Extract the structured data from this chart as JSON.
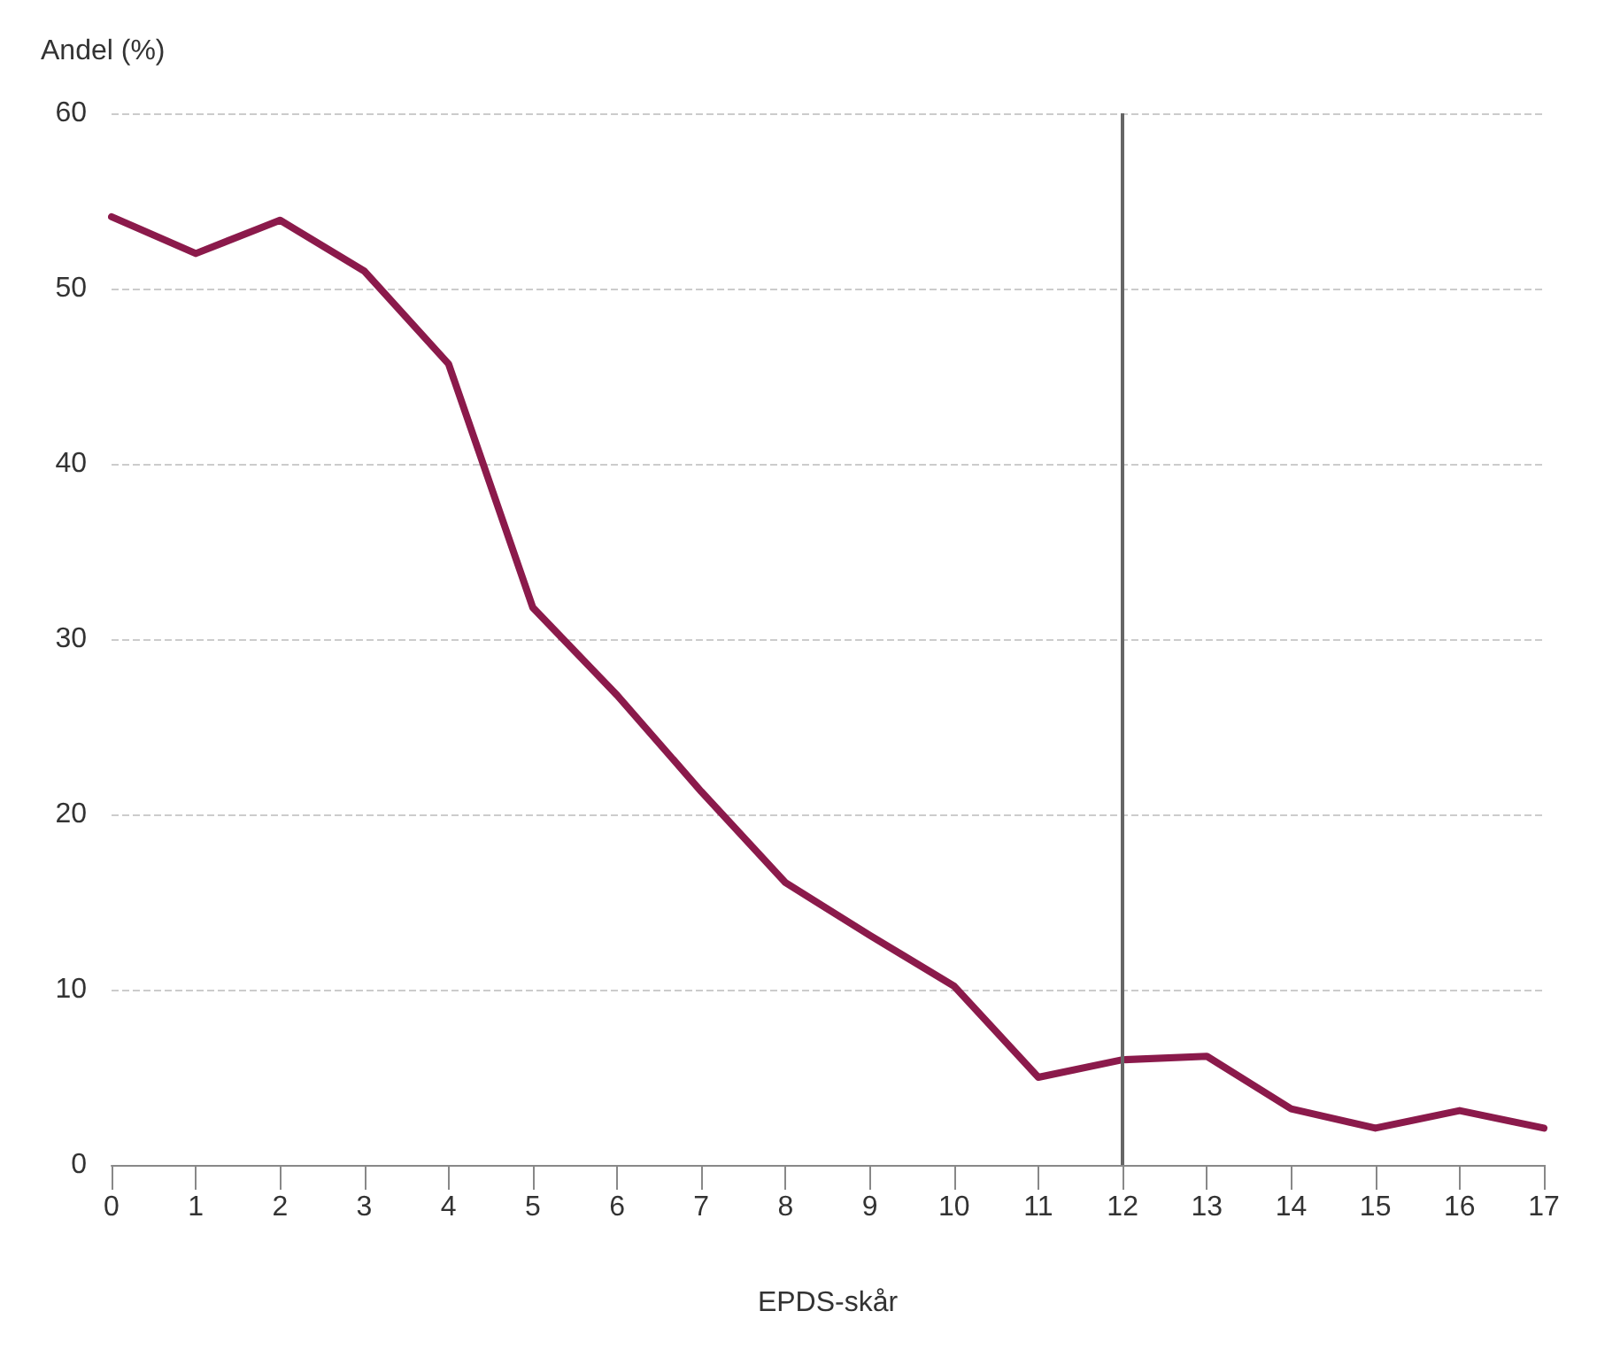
{
  "chart_data": {
    "type": "line",
    "xlabel": "EPDS-skår",
    "ylabel": "Andel (%)",
    "x": [
      0,
      1,
      2,
      3,
      4,
      5,
      6,
      7,
      8,
      9,
      10,
      11,
      12,
      13,
      14,
      15,
      16,
      17
    ],
    "series": [
      {
        "color": "#8b1a4b",
        "values": [
          54.1,
          52.0,
          53.9,
          51.0,
          45.7,
          31.8,
          26.8,
          21.3,
          16.1,
          13.1,
          10.2,
          5.0,
          6.0,
          6.2,
          3.2,
          2.1,
          3.1,
          2.1
        ]
      }
    ],
    "xlim": [
      0,
      17
    ],
    "xticks": [
      0,
      1,
      2,
      3,
      4,
      5,
      6,
      7,
      8,
      9,
      10,
      11,
      12,
      13,
      14,
      15,
      16,
      17
    ],
    "ylim": [
      0,
      60
    ],
    "yticks": [
      0,
      10,
      20,
      30,
      40,
      50,
      60
    ],
    "ref_lines": [
      {
        "axis": "x",
        "value": 12,
        "color": "#666666"
      }
    ],
    "grid": "y",
    "marker": "none",
    "line_style": "solid"
  }
}
